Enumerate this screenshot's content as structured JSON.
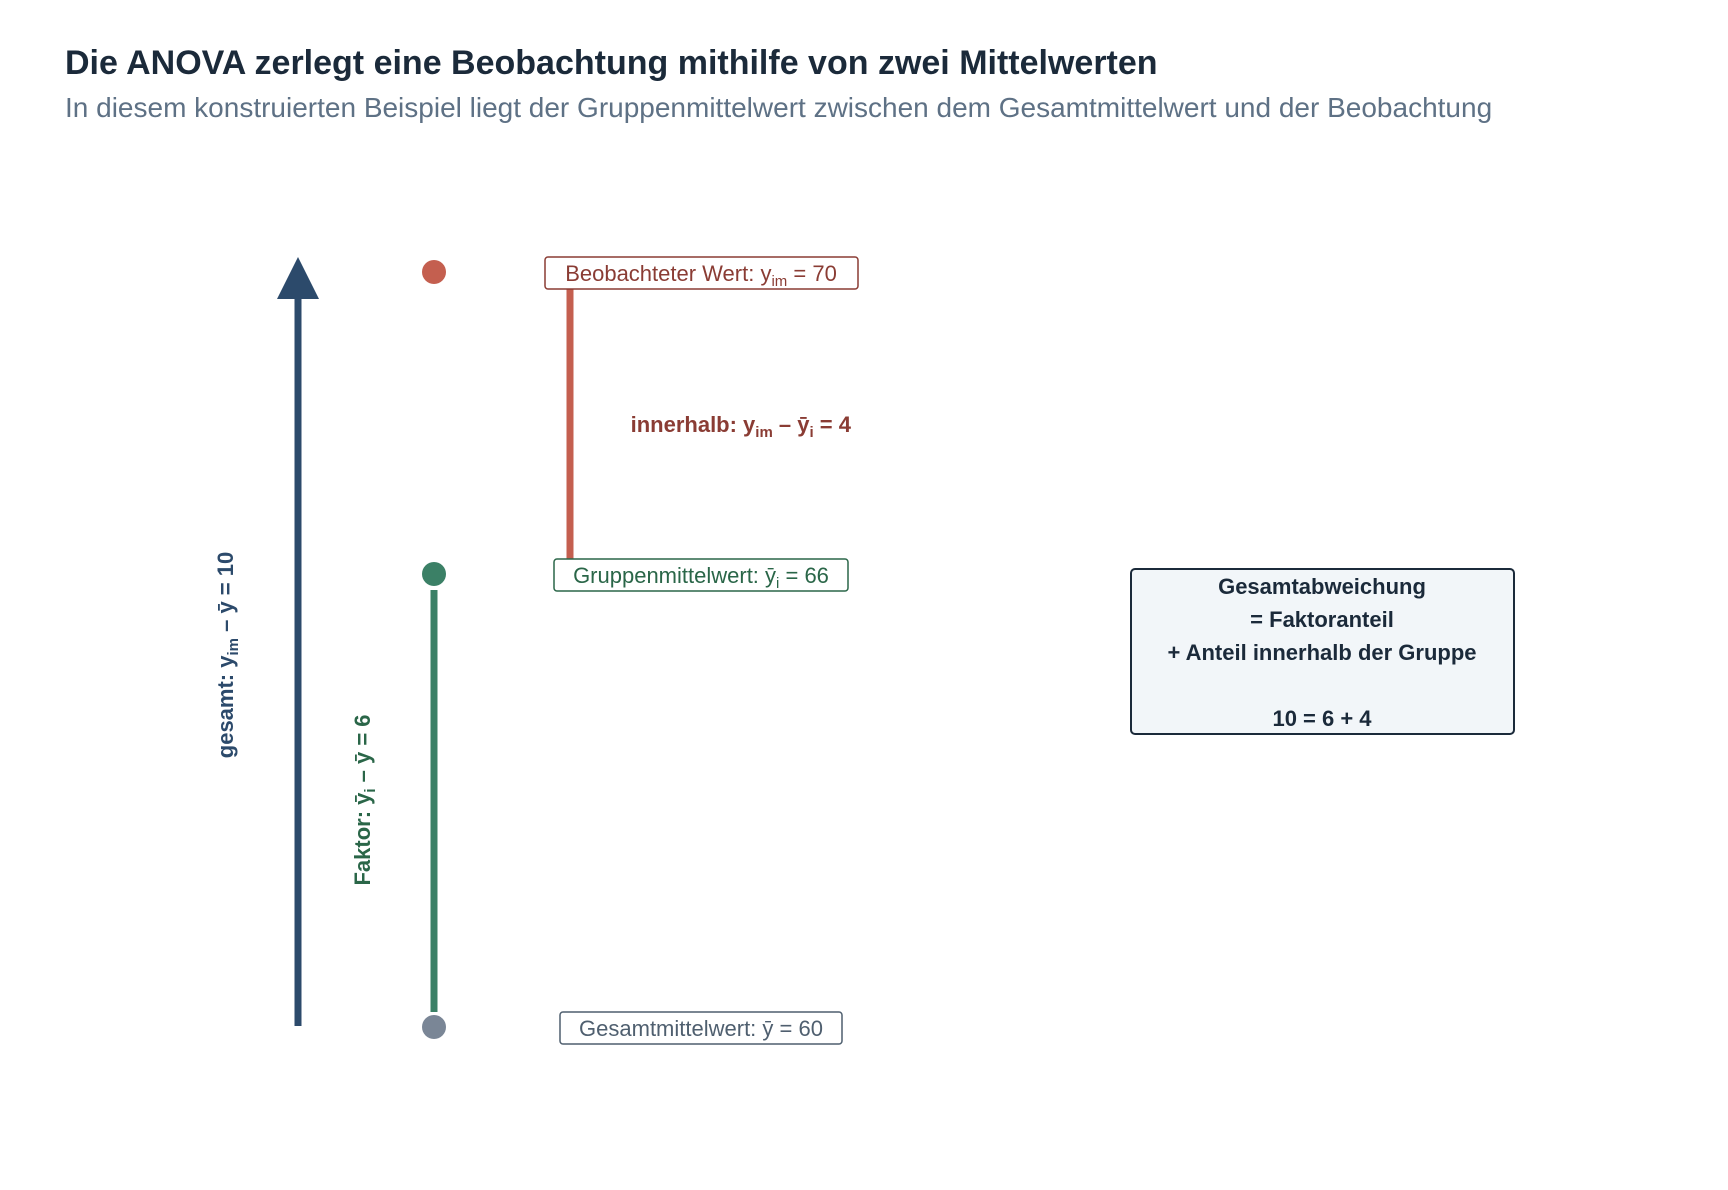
{
  "title": "Die ANOVA zerlegt eine Beobachtung mithilfe von zwei Mittelwerten",
  "subtitle": "In diesem konstruierten Beispiel liegt der Gruppenmittelwert zwischen dem Gesamtmittelwert und der Beobachtung",
  "points": {
    "observed": {
      "label_prefix": "Beobachteter Wert: ",
      "symbol": "y",
      "subscript": "im",
      "label_suffix": " = 70",
      "value": 70
    },
    "group_mean": {
      "label_prefix": "Gruppenmittelwert: ",
      "symbol": "ȳ",
      "subscript": "i",
      "label_suffix": " = 66",
      "value": 66
    },
    "grand_mean": {
      "label_prefix": "Gesamtmittelwert: ",
      "symbol": "ȳ",
      "label_suffix": " = 60",
      "value": 60
    }
  },
  "deviations": {
    "total": {
      "prefix": "gesamt: y",
      "subscript": "im",
      "suffix": " – ȳ = 10",
      "value": 10
    },
    "factor": {
      "prefix": "Faktor: ȳ",
      "subscript": "i",
      "suffix": " – ȳ = 6",
      "value": 6
    },
    "within": {
      "prefix": "innerhalb: y",
      "subscript": "im",
      "mid": " – ȳ",
      "subscript2": "i",
      "suffix": " = 4",
      "value": 4
    }
  },
  "summary_box": {
    "line1": "Gesamtabweichung",
    "line2": "= Faktoranteil",
    "line3": "+ Anteil innerhalb der Gruppe",
    "line4": "10 = 6 + 4"
  },
  "colors": {
    "title": "#1b2a3a",
    "subtitle": "#5e7185",
    "total": "#2c4a6b",
    "factor": "#3b8066",
    "within": "#c45f4f",
    "observed_text": "#8a3c34",
    "factor_text": "#2a6648",
    "grand_point": "#7a8696",
    "grand_text": "#4f5f6f",
    "box_fill": "#f2f6f9",
    "box_border": "#1b2a3a"
  }
}
